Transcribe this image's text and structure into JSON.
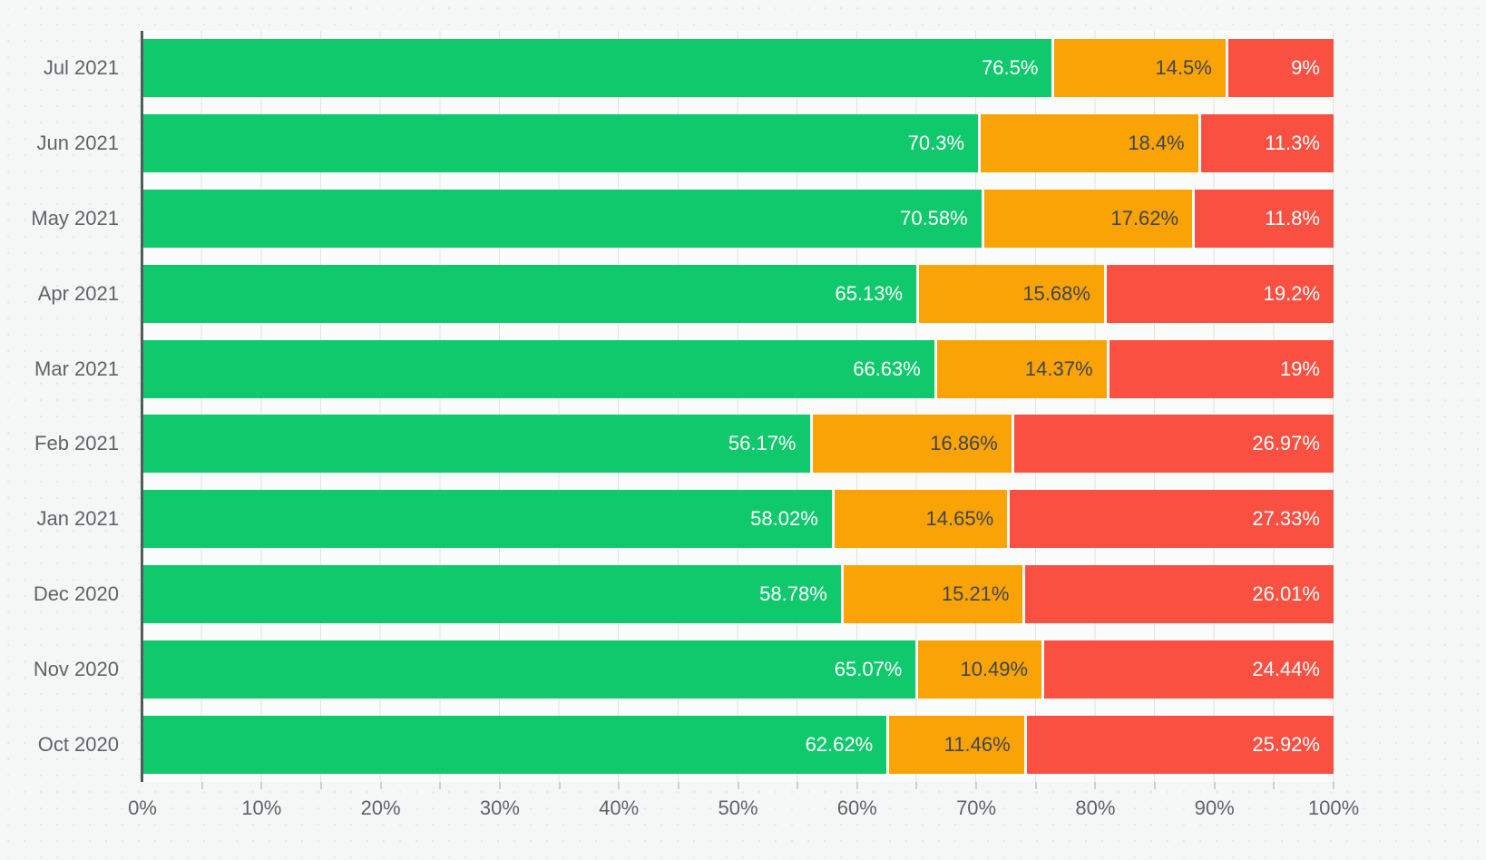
{
  "page": {
    "background_color": "#f5f6f6",
    "plot_background_color": "#fafbfb",
    "gridline_color": "#e3e5e5",
    "axis_line_color": "#54595b",
    "tick_color": "#cdd0d0",
    "axis_text_color": "#5e6567"
  },
  "chart_data": {
    "type": "bar",
    "orientation": "horizontal",
    "stacked": true,
    "title": "",
    "xlabel": "",
    "ylabel": "",
    "xlim": [
      0,
      100
    ],
    "grid": true,
    "grid_step_percent": 5,
    "tick_step_percent": 10,
    "legend": false,
    "categories": [
      "Jul 2021",
      "Jun 2021",
      "May 2021",
      "Apr 2021",
      "Mar 2021",
      "Feb 2021",
      "Jan 2021",
      "Dec 2020",
      "Nov 2020",
      "Oct 2020"
    ],
    "series": [
      {
        "name": "green-segment",
        "color": "#10c96d",
        "label_color": "#ffffff",
        "values": [
          76.5,
          70.3,
          70.58,
          65.13,
          66.63,
          56.17,
          58.02,
          58.78,
          65.07,
          62.62
        ],
        "labels": [
          "76.5%",
          "70.3%",
          "70.58%",
          "65.13%",
          "66.63%",
          "56.17%",
          "58.02%",
          "58.78%",
          "65.07%",
          "62.62%"
        ]
      },
      {
        "name": "orange-segment",
        "color": "#faa306",
        "label_color": "#3f464d",
        "values": [
          14.5,
          18.4,
          17.62,
          15.68,
          14.37,
          16.86,
          14.65,
          15.21,
          10.49,
          11.46
        ],
        "labels": [
          "14.5%",
          "18.4%",
          "17.62%",
          "15.68%",
          "14.37%",
          "16.86%",
          "14.65%",
          "15.21%",
          "10.49%",
          "11.46%"
        ]
      },
      {
        "name": "red-segment",
        "color": "#fa5042",
        "label_color": "#ffffff",
        "values": [
          9,
          11.3,
          11.8,
          19.2,
          19,
          26.97,
          27.33,
          26.01,
          24.44,
          25.92
        ],
        "labels": [
          "9%",
          "11.3%",
          "11.8%",
          "19.2%",
          "19%",
          "26.97%",
          "27.33%",
          "26.01%",
          "24.44%",
          "25.92%"
        ]
      }
    ],
    "x_ticks": [
      "0%",
      "10%",
      "20%",
      "30%",
      "40%",
      "50%",
      "60%",
      "70%",
      "80%",
      "90%",
      "100%"
    ]
  }
}
